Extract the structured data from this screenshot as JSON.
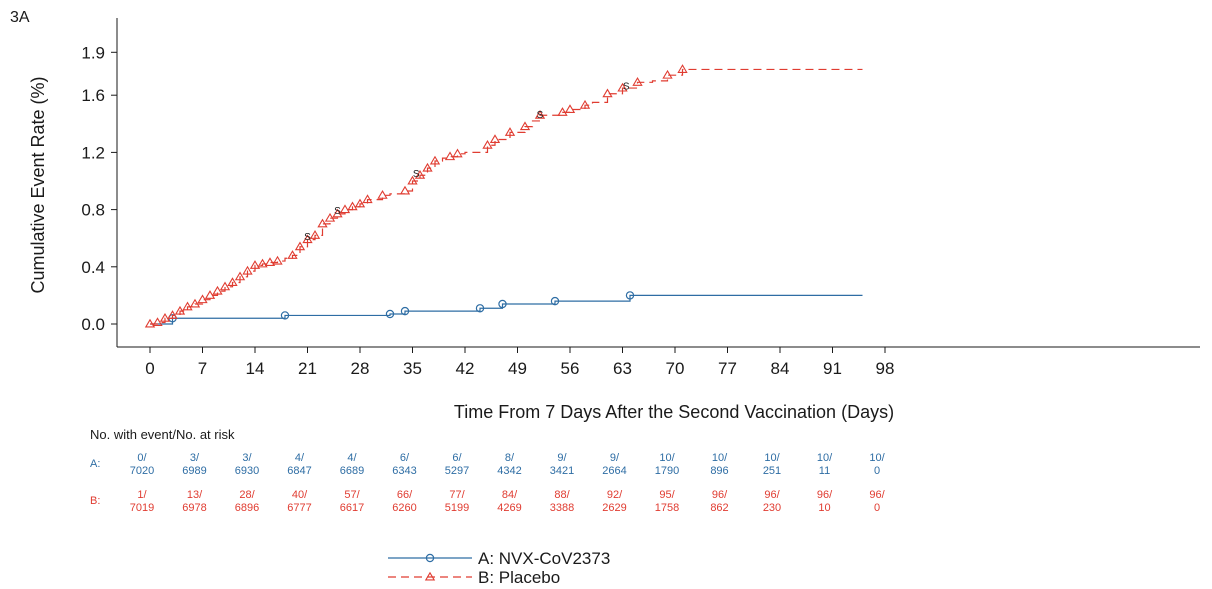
{
  "panel_label": "3A",
  "colors": {
    "A": "#2e6da4",
    "B": "#e03c31",
    "axis": "#1a1a1a"
  },
  "chart_data": {
    "type": "line",
    "ylabel": "Cumulative Event Rate (%)",
    "xlabel": "Time From 7 Days After the Second Vaccination (Days)",
    "xlim": [
      0,
      98
    ],
    "ylim": [
      0,
      1.9
    ],
    "x_ticks": [
      0,
      7,
      14,
      21,
      28,
      35,
      42,
      49,
      56,
      63,
      70,
      77,
      84,
      91,
      98
    ],
    "y_ticks": [
      0.0,
      0.4,
      0.8,
      1.2,
      1.6,
      1.9
    ],
    "y_tick_labels": [
      "0.0",
      "0.4",
      "0.8",
      "1.2",
      "1.6",
      "1.9"
    ],
    "series": [
      {
        "name": "A: NVX-CoV2373",
        "key": "A",
        "marker": "circle",
        "line": "solid",
        "steps": [
          [
            0,
            0
          ],
          [
            3,
            0.04
          ],
          [
            18,
            0.06
          ],
          [
            32,
            0.07
          ],
          [
            34,
            0.09
          ],
          [
            44,
            0.11
          ],
          [
            47,
            0.14
          ],
          [
            54,
            0.16
          ],
          [
            64,
            0.2
          ],
          [
            95,
            0.2
          ]
        ],
        "markers": [
          [
            3,
            0.04
          ],
          [
            18,
            0.06
          ],
          [
            32,
            0.07
          ],
          [
            34,
            0.09
          ],
          [
            44,
            0.11
          ],
          [
            47,
            0.14
          ],
          [
            54,
            0.16
          ],
          [
            64,
            0.2
          ]
        ]
      },
      {
        "name": "B: Placebo",
        "key": "B",
        "marker": "triangle",
        "line": "dashed",
        "steps": [
          [
            0,
            0
          ],
          [
            1,
            0.01
          ],
          [
            2,
            0.04
          ],
          [
            3,
            0.06
          ],
          [
            4,
            0.09
          ],
          [
            5,
            0.12
          ],
          [
            6,
            0.14
          ],
          [
            7,
            0.17
          ],
          [
            8,
            0.2
          ],
          [
            9,
            0.23
          ],
          [
            10,
            0.26
          ],
          [
            11,
            0.29
          ],
          [
            12,
            0.33
          ],
          [
            13,
            0.37
          ],
          [
            14,
            0.41
          ],
          [
            15,
            0.42
          ],
          [
            16,
            0.43
          ],
          [
            17,
            0.44
          ],
          [
            18,
            0.46
          ],
          [
            19,
            0.48
          ],
          [
            20,
            0.54
          ],
          [
            21,
            0.59
          ],
          [
            22,
            0.62
          ],
          [
            23,
            0.7
          ],
          [
            24,
            0.74
          ],
          [
            25,
            0.77
          ],
          [
            26,
            0.8
          ],
          [
            27,
            0.82
          ],
          [
            28,
            0.84
          ],
          [
            29,
            0.87
          ],
          [
            31,
            0.9
          ],
          [
            32,
            0.91
          ],
          [
            34,
            0.93
          ],
          [
            35,
            1.0
          ],
          [
            36,
            1.04
          ],
          [
            37,
            1.09
          ],
          [
            38,
            1.14
          ],
          [
            39,
            1.16
          ],
          [
            40,
            1.17
          ],
          [
            41,
            1.19
          ],
          [
            42,
            1.2
          ],
          [
            45,
            1.25
          ],
          [
            46,
            1.29
          ],
          [
            48,
            1.34
          ],
          [
            50,
            1.38
          ],
          [
            51,
            1.42
          ],
          [
            52,
            1.46
          ],
          [
            55,
            1.48
          ],
          [
            56,
            1.5
          ],
          [
            58,
            1.53
          ],
          [
            59,
            1.55
          ],
          [
            61,
            1.61
          ],
          [
            63,
            1.65
          ],
          [
            65,
            1.69
          ],
          [
            67,
            1.7
          ],
          [
            69,
            1.74
          ],
          [
            71,
            1.78
          ],
          [
            95,
            1.78
          ]
        ],
        "markers": [
          [
            0,
            0
          ],
          [
            1,
            0.01
          ],
          [
            2,
            0.04
          ],
          [
            3,
            0.06
          ],
          [
            4,
            0.09
          ],
          [
            5,
            0.12
          ],
          [
            6,
            0.14
          ],
          [
            7,
            0.17
          ],
          [
            8,
            0.2
          ],
          [
            9,
            0.23
          ],
          [
            10,
            0.26
          ],
          [
            11,
            0.29
          ],
          [
            12,
            0.33
          ],
          [
            13,
            0.37
          ],
          [
            14,
            0.41
          ],
          [
            15,
            0.42
          ],
          [
            16,
            0.43
          ],
          [
            17,
            0.44
          ],
          [
            19,
            0.48
          ],
          [
            20,
            0.54
          ],
          [
            21,
            0.59
          ],
          [
            22,
            0.62
          ],
          [
            23,
            0.7
          ],
          [
            24,
            0.74
          ],
          [
            25,
            0.77
          ],
          [
            26,
            0.8
          ],
          [
            27,
            0.82
          ],
          [
            28,
            0.84
          ],
          [
            29,
            0.87
          ],
          [
            31,
            0.9
          ],
          [
            34,
            0.93
          ],
          [
            35,
            1.0
          ],
          [
            36,
            1.04
          ],
          [
            37,
            1.09
          ],
          [
            38,
            1.14
          ],
          [
            40,
            1.17
          ],
          [
            41,
            1.19
          ],
          [
            45,
            1.25
          ],
          [
            46,
            1.29
          ],
          [
            48,
            1.34
          ],
          [
            50,
            1.38
          ],
          [
            52,
            1.46
          ],
          [
            55,
            1.48
          ],
          [
            56,
            1.5
          ],
          [
            58,
            1.53
          ],
          [
            61,
            1.61
          ],
          [
            63,
            1.65
          ],
          [
            65,
            1.69
          ],
          [
            69,
            1.74
          ],
          [
            71,
            1.78
          ]
        ]
      }
    ],
    "censor_marks": [
      [
        21,
        0.61,
        "S"
      ],
      [
        25,
        0.79,
        "S"
      ],
      [
        35.5,
        1.05,
        "S"
      ],
      [
        52,
        1.46,
        "S"
      ],
      [
        63.5,
        1.66,
        "S"
      ]
    ],
    "risk_table": {
      "header": "No. with event/No. at risk",
      "rows": [
        {
          "label": "A:",
          "key": "A",
          "events": [
            "0/",
            "3/",
            "3/",
            "4/",
            "4/",
            "6/",
            "6/",
            "8/",
            "9/",
            "9/",
            "10/",
            "10/",
            "10/",
            "10/",
            "10/"
          ],
          "at_risk": [
            "7020",
            "6989",
            "6930",
            "6847",
            "6689",
            "6343",
            "5297",
            "4342",
            "3421",
            "2664",
            "1790",
            "896",
            "251",
            "11",
            "0"
          ]
        },
        {
          "label": "B:",
          "key": "B",
          "events": [
            "1/",
            "13/",
            "28/",
            "40/",
            "57/",
            "66/",
            "77/",
            "84/",
            "88/",
            "92/",
            "95/",
            "96/",
            "96/",
            "96/",
            "96/"
          ],
          "at_risk": [
            "7019",
            "6978",
            "6896",
            "6777",
            "6617",
            "6260",
            "5199",
            "4269",
            "3388",
            "2629",
            "1758",
            "862",
            "230",
            "10",
            "0"
          ]
        }
      ]
    },
    "legend": [
      {
        "key": "A",
        "label": "A: NVX-CoV2373"
      },
      {
        "key": "B",
        "label": "B: Placebo"
      }
    ]
  }
}
